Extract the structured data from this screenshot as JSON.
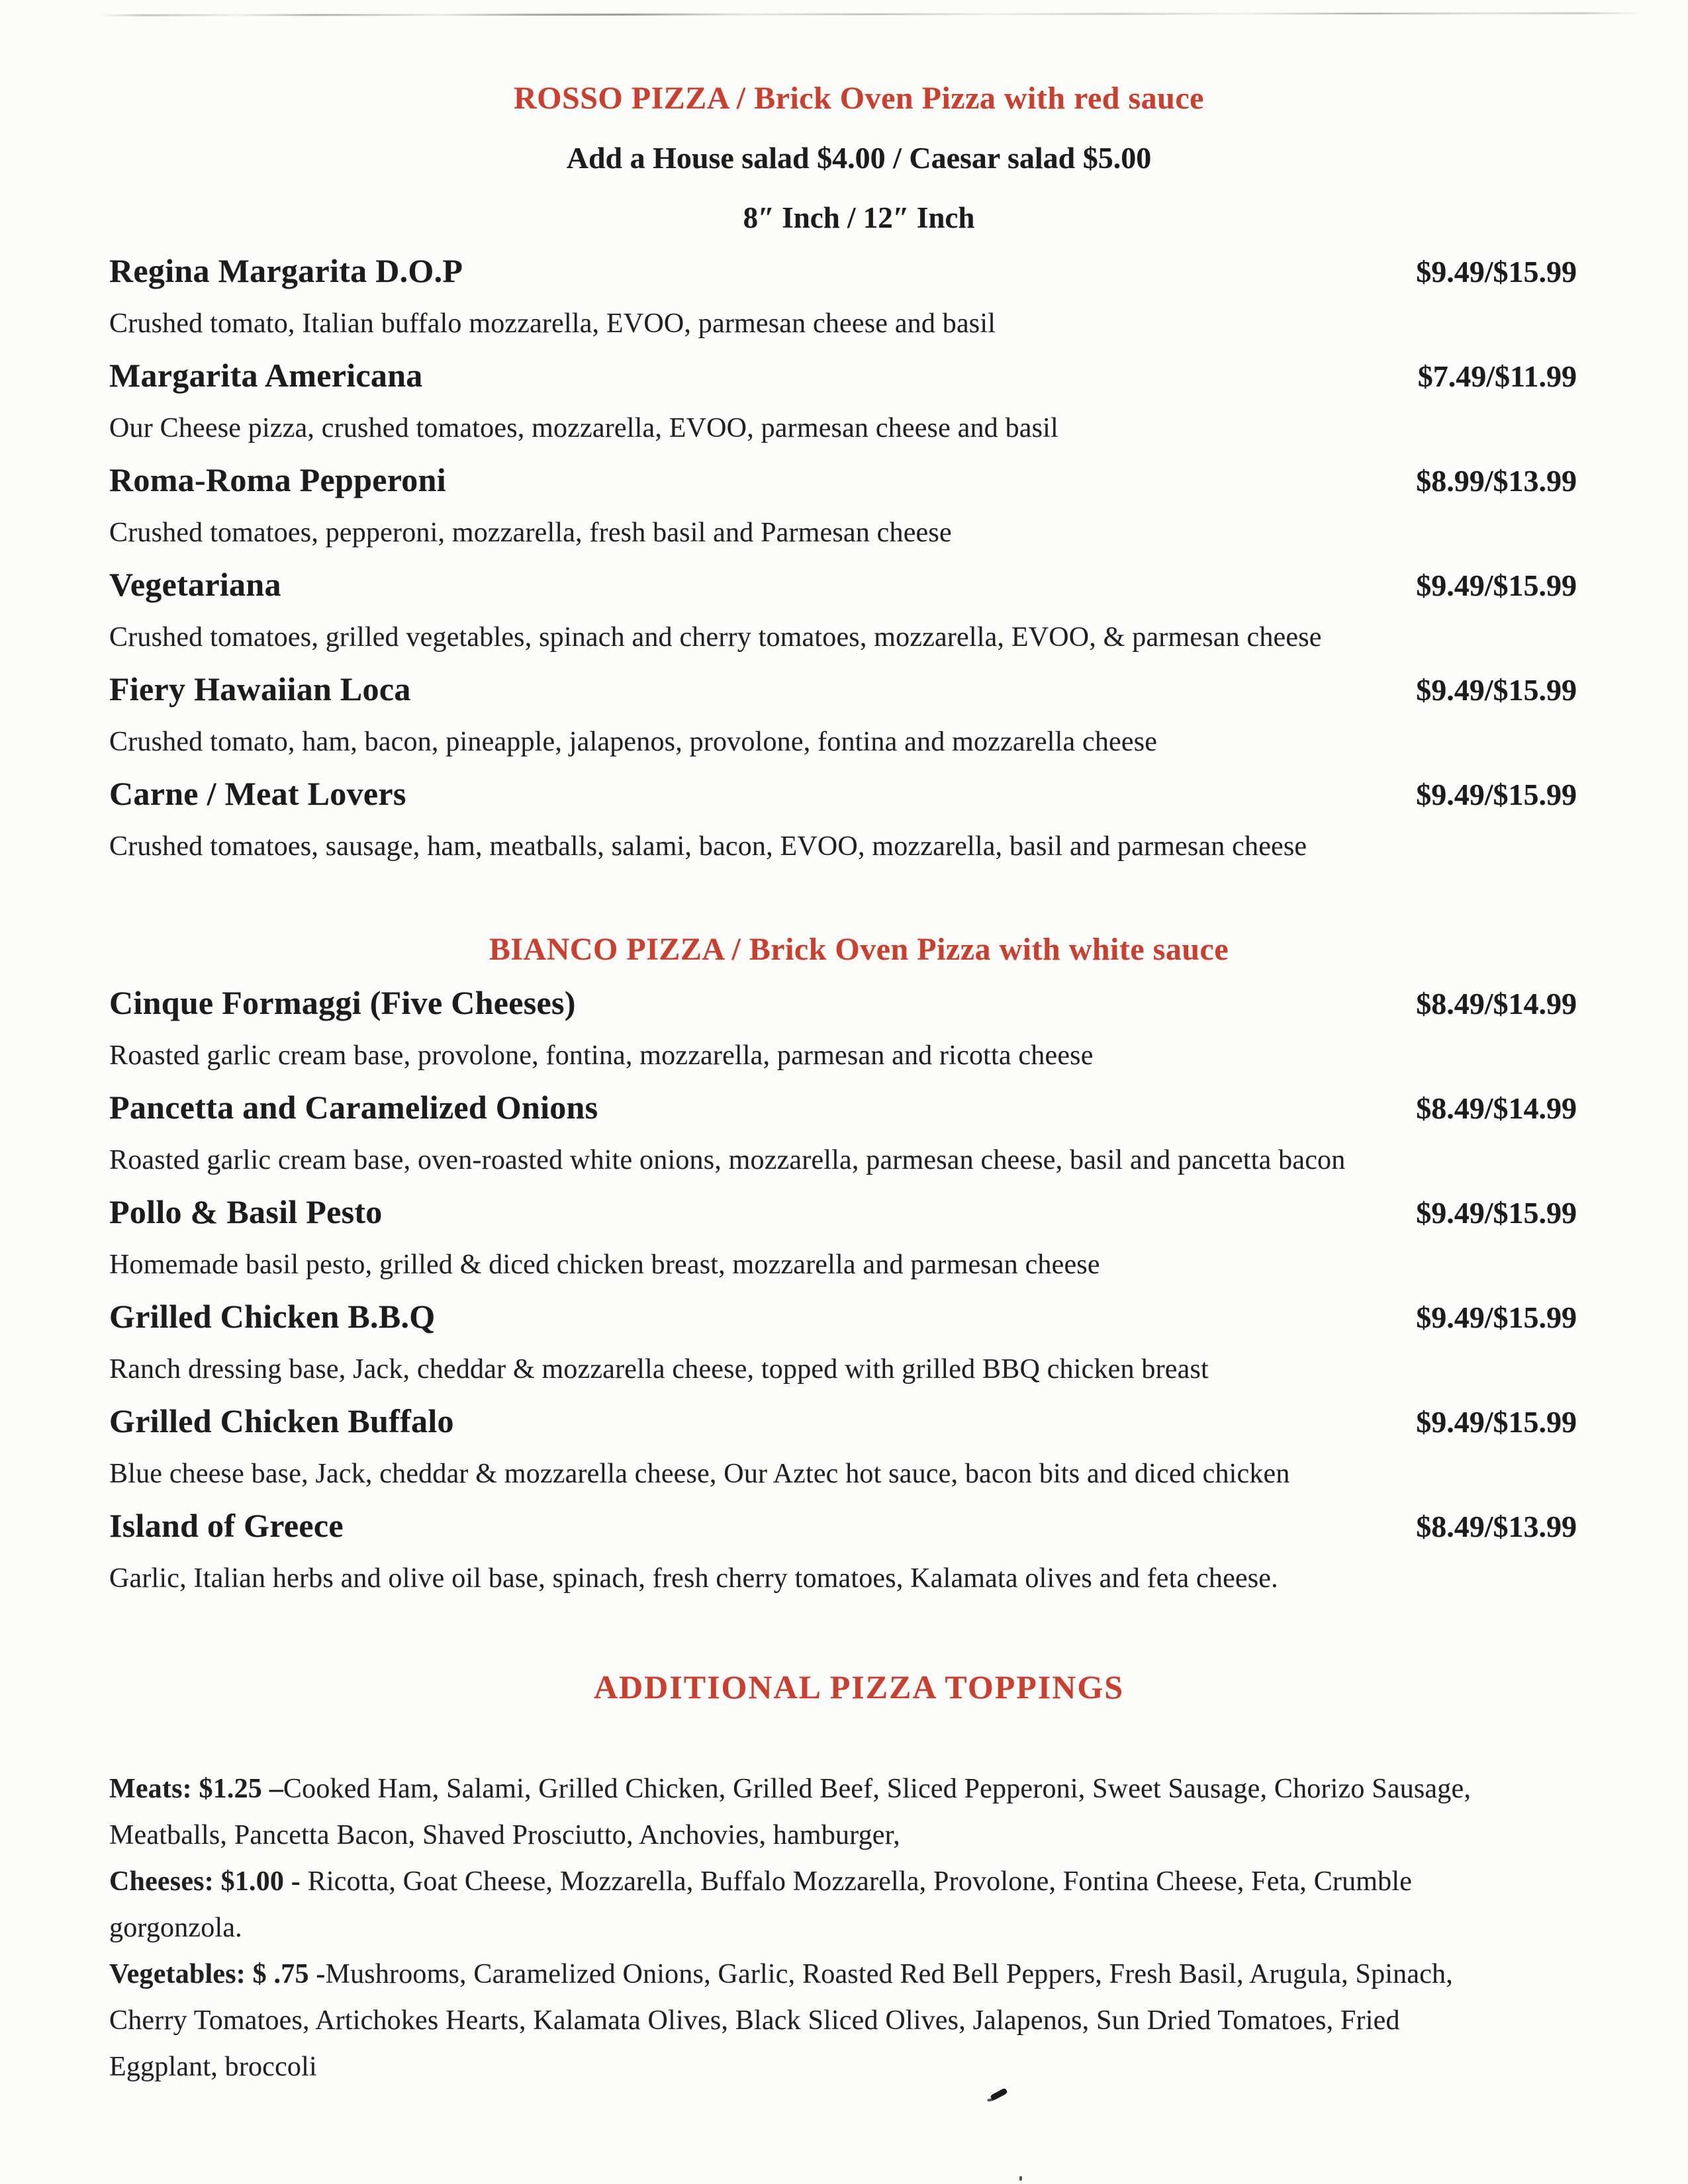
{
  "colors": {
    "accent_red": "#c8402f",
    "text_black": "#1d1b1c"
  },
  "rosso": {
    "heading": "ROSSO PIZZA / Brick Oven Pizza with red sauce",
    "salad_note": "Add a House salad $4.00 / Caesar salad $5.00",
    "size_note": "8″ Inch / 12″ Inch",
    "items": [
      {
        "name": "Regina Margarita D.O.P",
        "price": "$9.49/$15.99",
        "desc": "Crushed tomato, Italian buffalo mozzarella, EVOO, parmesan cheese and basil"
      },
      {
        "name": "Margarita Americana",
        "price": "$7.49/$11.99",
        "desc": "Our Cheese pizza, crushed tomatoes, mozzarella, EVOO, parmesan cheese and basil"
      },
      {
        "name": "Roma-Roma Pepperoni",
        "price": "$8.99/$13.99",
        "desc": "Crushed tomatoes, pepperoni, mozzarella, fresh basil and Parmesan cheese"
      },
      {
        "name": "Vegetariana",
        "price": "$9.49/$15.99",
        "desc": "Crushed tomatoes, grilled vegetables, spinach and cherry tomatoes, mozzarella, EVOO, & parmesan cheese"
      },
      {
        "name": "Fiery Hawaiian Loca",
        "price": "$9.49/$15.99",
        "desc": "Crushed tomato, ham, bacon, pineapple, jalapenos, provolone, fontina and mozzarella cheese"
      },
      {
        "name": "Carne /  Meat Lovers",
        "price": "$9.49/$15.99",
        "desc": "Crushed tomatoes, sausage, ham, meatballs, salami, bacon, EVOO, mozzarella, basil and parmesan cheese"
      }
    ]
  },
  "bianco": {
    "heading": "BIANCO PIZZA / Brick Oven Pizza with white sauce",
    "items": [
      {
        "name": "Cinque Formaggi (Five Cheeses)",
        "price": "$8.49/$14.99",
        "desc": "Roasted garlic cream base, provolone, fontina, mozzarella, parmesan and ricotta cheese"
      },
      {
        "name": "Pancetta and Caramelized Onions",
        "price": "$8.49/$14.99",
        "desc": "Roasted garlic cream base, oven-roasted white onions, mozzarella, parmesan cheese, basil and pancetta bacon"
      },
      {
        "name": "Pollo & Basil Pesto",
        "price": "$9.49/$15.99",
        "desc": "Homemade basil pesto, grilled & diced chicken breast, mozzarella and parmesan cheese"
      },
      {
        "name": "Grilled Chicken B.B.Q",
        "price": "$9.49/$15.99",
        "desc": "Ranch dressing base, Jack, cheddar & mozzarella cheese, topped with grilled BBQ chicken breast"
      },
      {
        "name": "Grilled Chicken Buffalo",
        "price": "$9.49/$15.99",
        "desc": "Blue cheese base, Jack, cheddar & mozzarella cheese, Our Aztec hot sauce, bacon bits and diced chicken"
      },
      {
        "name": "Island of Greece",
        "price": "$8.49/$13.99",
        "desc": "Garlic, Italian herbs and olive oil base, spinach, fresh cherry tomatoes, Kalamata olives and feta cheese."
      }
    ]
  },
  "toppings": {
    "heading": "ADDITIONAL PIZZA TOPPINGS",
    "groups": [
      {
        "label": "Meats: $1.25 –",
        "items": "Cooked Ham, Salami, Grilled Chicken, Grilled Beef, Sliced Pepperoni, Sweet Sausage, Chorizo Sausage,\nMeatballs, Pancetta Bacon, Shaved Prosciutto, Anchovies, hamburger,"
      },
      {
        "label": "Cheeses: $1.00 - ",
        "items": "Ricotta, Goat Cheese, Mozzarella, Buffalo Mozzarella, Provolone, Fontina Cheese, Feta, Crumble\ngorgonzola."
      },
      {
        "label": "Vegetables: $ .75 -",
        "items": "Mushrooms, Caramelized Onions, Garlic, Roasted Red Bell Peppers, Fresh Basil, Arugula, Spinach,\nCherry Tomatoes, Artichokes Hearts, Kalamata Olives, Black Sliced Olives, Jalapenos, Sun Dried Tomatoes, Fried\nEggplant, broccoli"
      }
    ]
  }
}
